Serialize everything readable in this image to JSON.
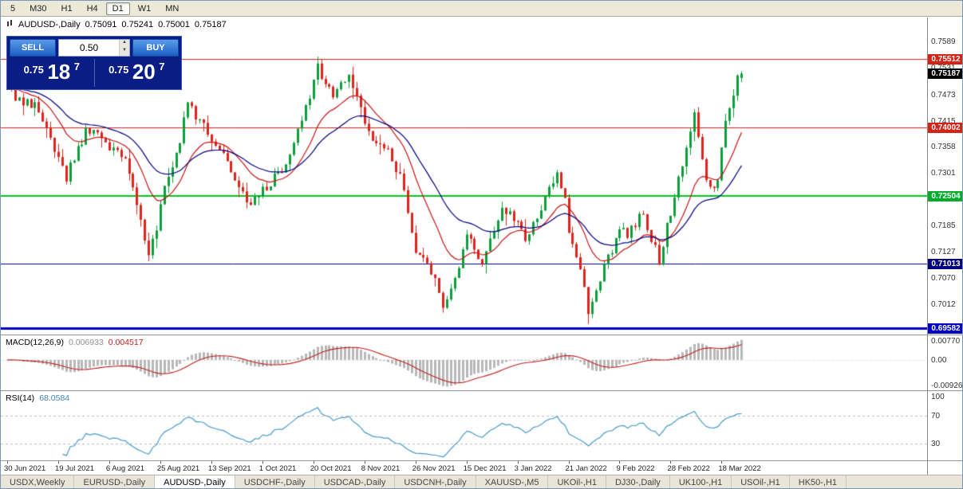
{
  "timeframe_bar": {
    "items": [
      {
        "label": "5",
        "active": false
      },
      {
        "label": "M30",
        "active": false
      },
      {
        "label": "H1",
        "active": false
      },
      {
        "label": "H4",
        "active": false
      },
      {
        "label": "D1",
        "active": true
      },
      {
        "label": "W1",
        "active": false
      },
      {
        "label": "MN",
        "active": false
      }
    ]
  },
  "chart_header": {
    "symbol": "AUDUSD-,Daily",
    "open": "0.75091",
    "high": "0.75241",
    "low": "0.75001",
    "close": "0.75187"
  },
  "trade_panel": {
    "sell_label": "SELL",
    "buy_label": "BUY",
    "volume": "0.50",
    "sell_price": {
      "prefix": "0.75",
      "pips": "18",
      "pipette": "7"
    },
    "buy_price": {
      "prefix": "0.75",
      "pips": "20",
      "pipette": "7"
    }
  },
  "icons": {
    "spinner_up": "▲",
    "spinner_down": "▼"
  },
  "price_axis": {
    "ticks": [
      {
        "label": "0.7589",
        "price": 0.7589
      },
      {
        "label": "0.7531",
        "price": 0.7531
      },
      {
        "label": "0.7473",
        "price": 0.7473
      },
      {
        "label": "0.7415",
        "price": 0.7415
      },
      {
        "label": "0.7358",
        "price": 0.7358
      },
      {
        "label": "0.7301",
        "price": 0.7301
      },
      {
        "label": "0.7243",
        "price": 0.7243
      },
      {
        "label": "0.7185",
        "price": 0.7185
      },
      {
        "label": "0.7127",
        "price": 0.7127
      },
      {
        "label": "0.7070",
        "price": 0.707
      },
      {
        "label": "0.7012",
        "price": 0.7012
      },
      {
        "label": "0.6954",
        "price": 0.6954
      }
    ],
    "badges": [
      {
        "value": "0.75512",
        "price": 0.75512,
        "color": "#d42215"
      },
      {
        "value": "0.75187",
        "price": 0.75187,
        "color": "#000000"
      },
      {
        "value": "0.74002",
        "price": 0.74002,
        "color": "#d42215"
      },
      {
        "value": "0.72504",
        "price": 0.72504,
        "color": "#00ad2b"
      },
      {
        "value": "0.71013",
        "price": 0.71013,
        "color": "#000080"
      },
      {
        "value": "0.69582",
        "price": 0.69582,
        "color": "#0000c8"
      }
    ]
  },
  "macd": {
    "name_label": "MACD(12,26,9)",
    "value_main": "0.006933",
    "value_signal": "0.004517",
    "axis_ticks": [
      {
        "label": "0.00770",
        "anchor": "top"
      },
      {
        "label": "0.00",
        "anchor": "zero"
      },
      {
        "label": "-0.00926",
        "anchor": "bottom"
      }
    ]
  },
  "rsi": {
    "name_label": "RSI(14)",
    "value": "68.0584",
    "axis_ticks": [
      {
        "label": "100",
        "value": 100
      },
      {
        "label": "70",
        "value": 70
      },
      {
        "label": "30",
        "value": 30
      }
    ]
  },
  "tabs": {
    "items": [
      {
        "label": "USDX,Weekly",
        "active": false
      },
      {
        "label": "EURUSD-,Daily",
        "active": false
      },
      {
        "label": "AUDUSD-,Daily",
        "active": true
      },
      {
        "label": "USDCHF-,Daily",
        "active": false
      },
      {
        "label": "USDCAD-,Daily",
        "active": false
      },
      {
        "label": "USDCNH-,Daily",
        "active": false
      },
      {
        "label": "XAUUSD-,M5",
        "active": false
      },
      {
        "label": "UKOil-,H1",
        "active": false
      },
      {
        "label": "DJ30-,Daily",
        "active": false
      },
      {
        "label": "UK100-,H1",
        "active": false
      },
      {
        "label": "USOil-,H1",
        "active": false
      },
      {
        "label": "HK50-,H1",
        "active": false
      }
    ]
  },
  "chart_data": {
    "type": "candlestick",
    "title": "AUDUSD-,Daily",
    "ohlc_display": {
      "open": 0.75091,
      "high": 0.75241,
      "low": 0.75001,
      "close": 0.75187
    },
    "y_axis": {
      "top": 0.7642,
      "bottom": 0.6945
    },
    "x_labels": [
      "30 Jun 2021",
      "19 Jul 2021",
      "6 Aug 2021",
      "25 Aug 2021",
      "13 Sep 2021",
      "1 Oct 2021",
      "20 Oct 2021",
      "8 Nov 2021",
      "26 Nov 2021",
      "15 Dec 2021",
      "3 Jan 2022",
      "21 Jan 2022",
      "9 Feb 2022",
      "28 Feb 2022",
      "18 Mar 2022"
    ],
    "bars_per_label": 13,
    "candle_count": 188,
    "up_color": "#0b9e3c",
    "down_color": "#e0231c",
    "trend_anchors": [
      [
        0,
        0.7492
      ],
      [
        3,
        0.7455
      ],
      [
        7,
        0.7448
      ],
      [
        10,
        0.74
      ],
      [
        13,
        0.7335
      ],
      [
        15,
        0.7288
      ],
      [
        17,
        0.7335
      ],
      [
        20,
        0.7388
      ],
      [
        23,
        0.74
      ],
      [
        26,
        0.7358
      ],
      [
        30,
        0.7342
      ],
      [
        33,
        0.723
      ],
      [
        36,
        0.713
      ],
      [
        38,
        0.7168
      ],
      [
        39,
        0.7235
      ],
      [
        42,
        0.731
      ],
      [
        44,
        0.7375
      ],
      [
        46,
        0.7448
      ],
      [
        49,
        0.742
      ],
      [
        52,
        0.7368
      ],
      [
        55,
        0.7345
      ],
      [
        58,
        0.729
      ],
      [
        62,
        0.723
      ],
      [
        65,
        0.7262
      ],
      [
        68,
        0.7292
      ],
      [
        71,
        0.731
      ],
      [
        74,
        0.7395
      ],
      [
        77,
        0.7475
      ],
      [
        79,
        0.753
      ],
      [
        81,
        0.7495
      ],
      [
        83,
        0.7465
      ],
      [
        85,
        0.75
      ],
      [
        87,
        0.7518
      ],
      [
        89,
        0.748
      ],
      [
        91,
        0.7405
      ],
      [
        94,
        0.737
      ],
      [
        97,
        0.7345
      ],
      [
        100,
        0.729
      ],
      [
        102,
        0.722
      ],
      [
        104,
        0.7135
      ],
      [
        106,
        0.7118
      ],
      [
        108,
        0.7085
      ],
      [
        110,
        0.703
      ],
      [
        111,
        0.7002
      ],
      [
        113,
        0.7055
      ],
      [
        115,
        0.709
      ],
      [
        117,
        0.7158
      ],
      [
        119,
        0.713
      ],
      [
        121,
        0.7112
      ],
      [
        124,
        0.718
      ],
      [
        126,
        0.7225
      ],
      [
        128,
        0.7205
      ],
      [
        130,
        0.7188
      ],
      [
        132,
        0.7158
      ],
      [
        134,
        0.7185
      ],
      [
        136,
        0.7215
      ],
      [
        138,
        0.7268
      ],
      [
        140,
        0.729
      ],
      [
        142,
        0.7235
      ],
      [
        143,
        0.718
      ],
      [
        145,
        0.7122
      ],
      [
        147,
        0.7045
      ],
      [
        148,
        0.699
      ],
      [
        150,
        0.7035
      ],
      [
        152,
        0.709
      ],
      [
        154,
        0.7135
      ],
      [
        156,
        0.7178
      ],
      [
        158,
        0.716
      ],
      [
        160,
        0.719
      ],
      [
        162,
        0.7215
      ],
      [
        164,
        0.715
      ],
      [
        166,
        0.711
      ],
      [
        168,
        0.718
      ],
      [
        170,
        0.725
      ],
      [
        172,
        0.7315
      ],
      [
        174,
        0.7398
      ],
      [
        175,
        0.7438
      ],
      [
        176,
        0.738
      ],
      [
        177,
        0.732
      ],
      [
        178,
        0.7285
      ],
      [
        179,
        0.7262
      ],
      [
        180,
        0.727
      ],
      [
        181,
        0.7292
      ],
      [
        182,
        0.736
      ],
      [
        183,
        0.7408
      ],
      [
        184,
        0.7452
      ],
      [
        185,
        0.748
      ],
      [
        186,
        0.7505
      ],
      [
        187,
        0.75187
      ]
    ],
    "wick_overrides": [
      [
        36,
        "low",
        0.7106
      ],
      [
        79,
        "high",
        0.7556
      ],
      [
        111,
        "low",
        0.6993
      ],
      [
        148,
        "low",
        0.6968
      ],
      [
        175,
        "high",
        0.7441
      ]
    ],
    "horizontal_levels": [
      {
        "price": 0.75512,
        "color": "#d42215",
        "width": 1
      },
      {
        "price": 0.74002,
        "color": "#d42215",
        "width": 1
      },
      {
        "price": 0.72504,
        "color": "#00c81e",
        "width": 2
      },
      {
        "price": 0.71013,
        "color": "#000080",
        "width": 1
      },
      {
        "price": 0.69582,
        "color": "#0000c8",
        "width": 3
      }
    ],
    "moving_averages": [
      {
        "type": "ema",
        "period": 14,
        "color": "#c81414"
      },
      {
        "type": "ema",
        "period": 30,
        "color": "#000080"
      }
    ],
    "indicators": [
      {
        "name": "MACD",
        "params": [
          12,
          26,
          9
        ],
        "current_macd": 0.006933,
        "current_signal": 0.004517,
        "histogram_color": "#b8b8b8",
        "signal_color": "#c02020"
      },
      {
        "name": "RSI",
        "params": [
          14
        ],
        "current": 68.0584,
        "line_color": "#4a9ccc",
        "levels": [
          70,
          30
        ]
      }
    ]
  }
}
